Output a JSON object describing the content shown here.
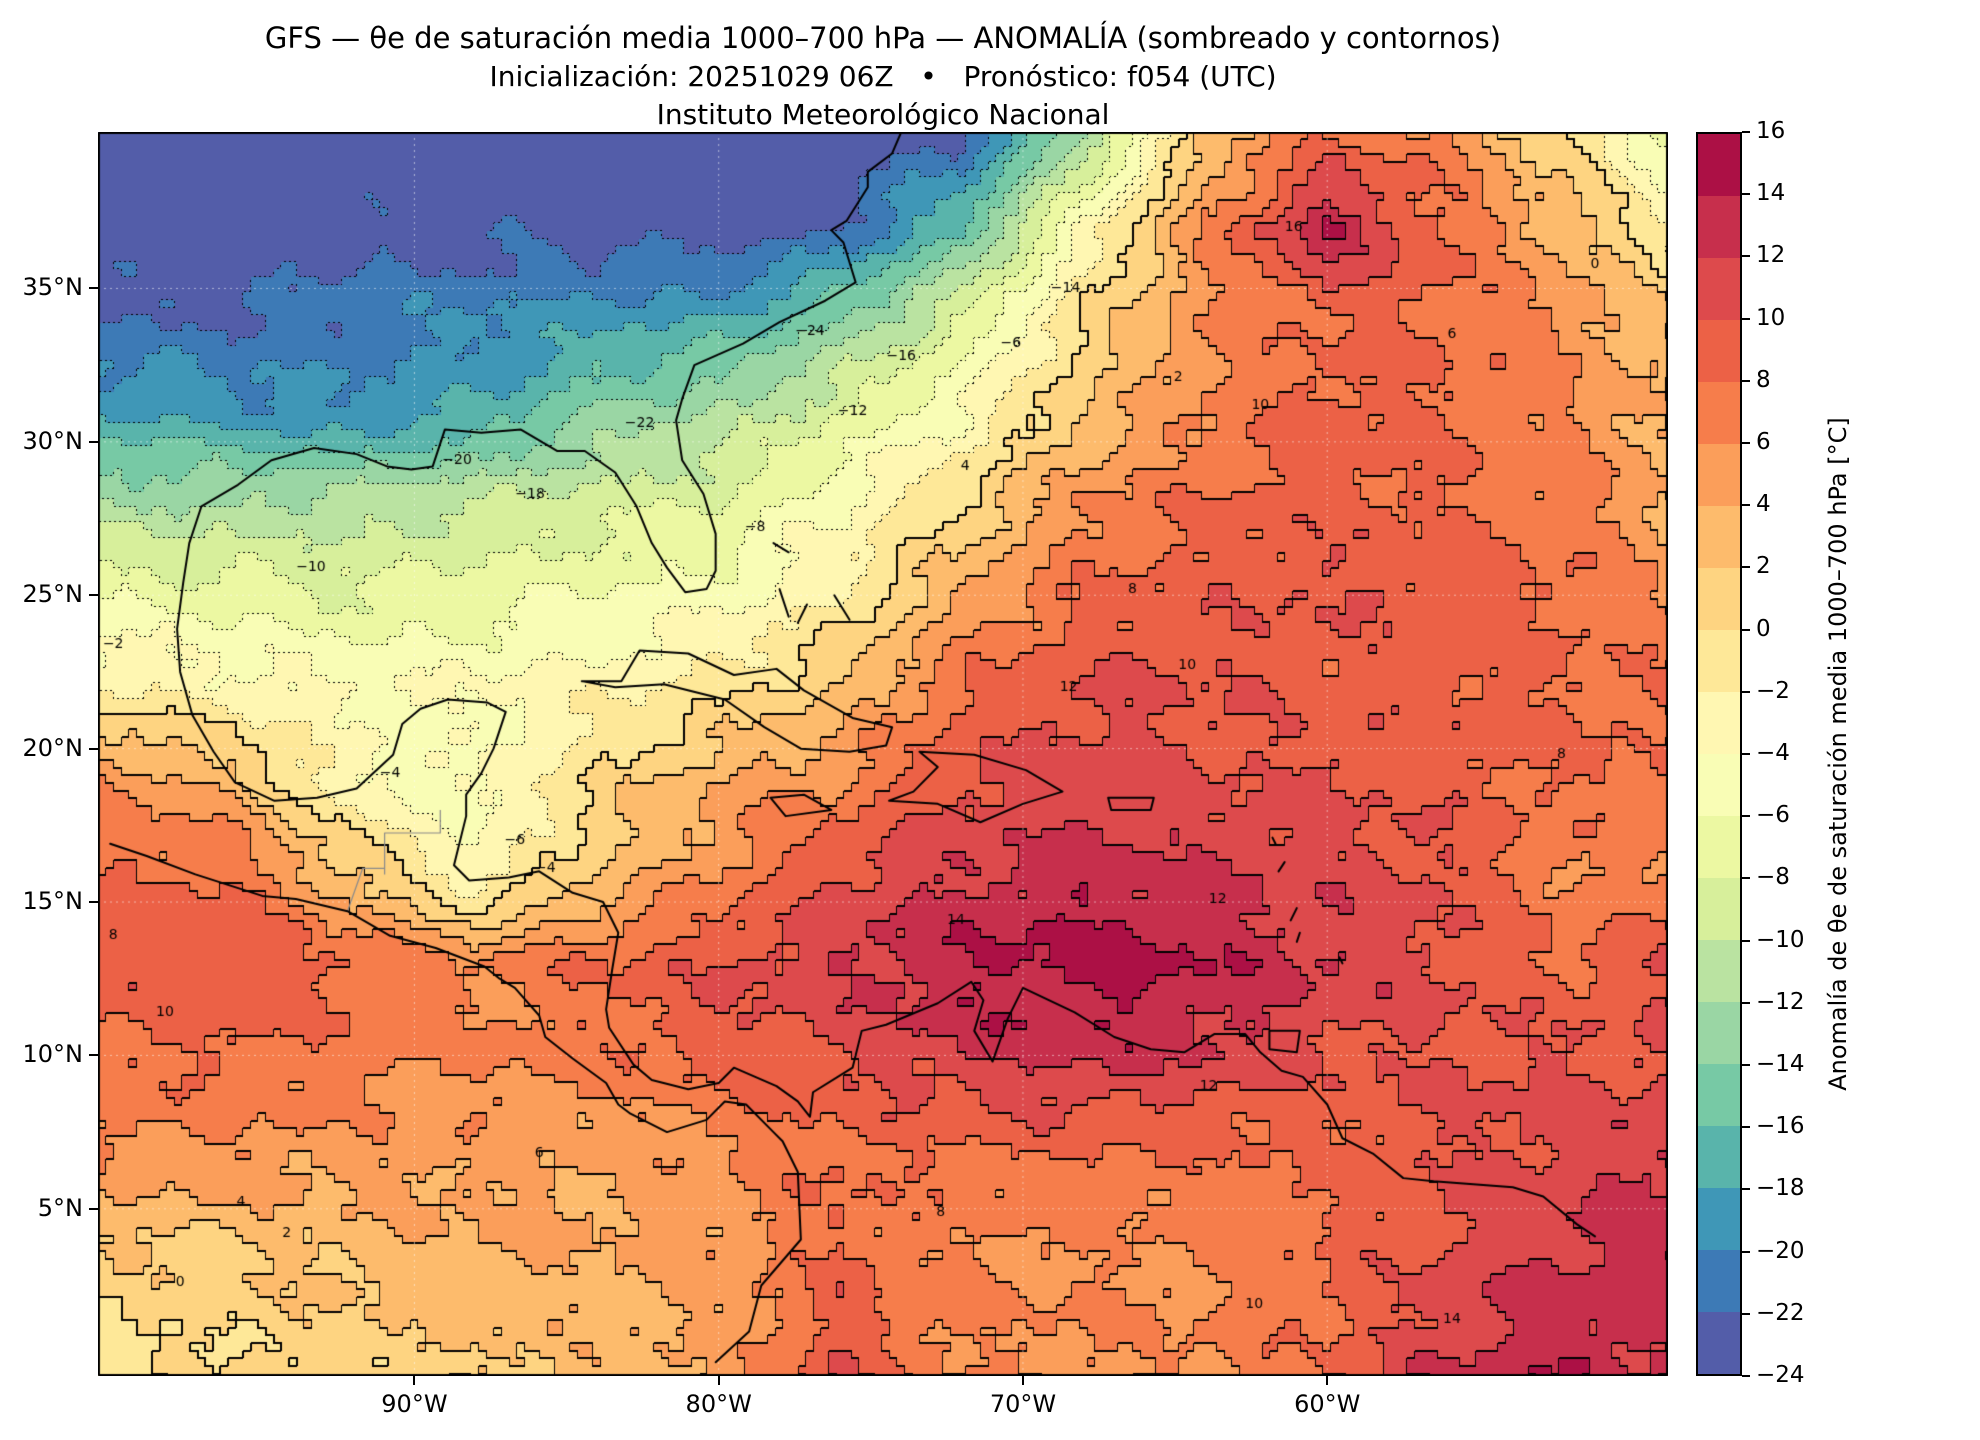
{
  "title": {
    "line1": "GFS — θe de saturación media 1000–700 hPa — ANOMALÍA (sombreado y contornos)",
    "line2": "Inicialización: 20251029 06Z   •   Pronóstico: f054 (UTC)",
    "line3": "Instituto Meteorológico Nacional"
  },
  "axes": {
    "x_ticks": [
      {
        "label": "90°W",
        "lon": -90
      },
      {
        "label": "80°W",
        "lon": -80
      },
      {
        "label": "70°W",
        "lon": -70
      },
      {
        "label": "60°W",
        "lon": -60
      }
    ],
    "y_ticks": [
      {
        "label": "35°N",
        "lat": 35
      },
      {
        "label": "30°N",
        "lat": 30
      },
      {
        "label": "25°N",
        "lat": 25
      },
      {
        "label": "20°N",
        "lat": 20
      },
      {
        "label": "15°N",
        "lat": 15
      },
      {
        "label": "10°N",
        "lat": 10
      },
      {
        "label": "5°N",
        "lat": 5
      }
    ]
  },
  "colorbar": {
    "label": "Anomalía de θe de saturación media 1000–700 hPa [°C]",
    "min": -24,
    "max": 16,
    "step": 2,
    "tick_labels": [
      "16",
      "14",
      "12",
      "10",
      "8",
      "6",
      "4",
      "2",
      "0",
      "−2",
      "−4",
      "−6",
      "−8",
      "−10",
      "−12",
      "−14",
      "−16",
      "−18",
      "−20",
      "−22",
      "−24"
    ],
    "colors": [
      "#535DA9",
      "#3D7AB6",
      "#3F97B7",
      "#59B4AB",
      "#77C9A5",
      "#9AD6A4",
      "#BAE3A1",
      "#D7EF9B",
      "#ECF8A2",
      "#F9FDB5",
      "#FFF7B2",
      "#FEE898",
      "#FED481",
      "#FDBB6C",
      "#FB9E5A",
      "#F67D4B",
      "#EC6146",
      "#DD4A4C",
      "#C72F4C",
      "#AC1045"
    ]
  },
  "chart_data": {
    "type": "heatmap",
    "subtype": "filled_contours_with_lines",
    "title": "GFS — θe de saturación media 1000–700 hPa — ANOMALÍA (sombreado y contornos)",
    "units": "°C",
    "colormap": "Spectral_r",
    "value_range": [
      -24,
      16
    ],
    "contour_interval": 2,
    "negative_contour_style": "dotted",
    "positive_contour_style": "solid",
    "grid_on": true,
    "legend_position": "right-colorbar",
    "lon_range": [
      -100.4,
      -48.8
    ],
    "lat_range": [
      -0.45,
      40.1
    ],
    "grid_lons": [
      -100,
      -96,
      -92,
      -88,
      -84,
      -80,
      -76,
      -72,
      -68,
      -64,
      -60,
      -56,
      -52,
      -49
    ],
    "grid_lats": [
      40,
      37,
      34,
      31,
      28,
      25,
      22,
      19,
      16,
      13,
      10,
      7,
      4,
      0
    ],
    "anomaly_grid_degC": [
      [
        -24,
        -24,
        -24,
        -24,
        -24,
        -24,
        -24,
        -22,
        -12,
        2,
        8,
        6,
        0,
        -6
      ],
      [
        -24,
        -24,
        -23,
        -23,
        -23,
        -24,
        -22,
        -16,
        -4,
        6,
        14,
        8,
        3,
        -2
      ],
      [
        -22,
        -22,
        -21,
        -20,
        -19,
        -18,
        -14,
        -8,
        0,
        6,
        8,
        8,
        6,
        2
      ],
      [
        -18,
        -19,
        -20,
        -18,
        -14,
        -12,
        -8,
        -4,
        2,
        6,
        9,
        8,
        6,
        4
      ],
      [
        -12,
        -12,
        -11,
        -10,
        -9,
        -8,
        -4,
        0,
        6,
        8,
        9,
        8,
        7,
        4
      ],
      [
        -6,
        -7,
        -8,
        -7,
        -6,
        -5,
        -2,
        4,
        8,
        9,
        10,
        9,
        8,
        6
      ],
      [
        -2,
        -3,
        -4,
        -4,
        -3,
        -1,
        2,
        8,
        10,
        10,
        9,
        9,
        8,
        8
      ],
      [
        6,
        3,
        -4,
        -5,
        0,
        4,
        6,
        10,
        11,
        10,
        10,
        9,
        8,
        8
      ],
      [
        8,
        8,
        2,
        -4,
        2,
        6,
        10,
        12,
        13,
        12,
        11,
        10,
        6,
        6
      ],
      [
        9,
        10,
        8,
        6,
        8,
        10,
        12,
        14,
        15,
        14,
        12,
        10,
        8,
        10
      ],
      [
        8,
        8,
        7,
        6,
        7,
        9,
        10,
        12,
        13,
        12,
        10,
        10,
        10,
        10
      ],
      [
        6,
        6,
        5,
        5,
        4,
        6,
        8,
        8,
        8,
        8,
        8,
        10,
        11,
        12
      ],
      [
        2,
        2,
        3,
        4,
        4,
        5,
        8,
        6,
        6,
        6,
        8,
        10,
        12,
        13
      ],
      [
        -1,
        0,
        1,
        2,
        3,
        4,
        10,
        6,
        6,
        6,
        8,
        12,
        14,
        12
      ]
    ],
    "contour_labels": [
      {
        "t": "−24",
        "lon": -77.0,
        "lat": 33.6
      },
      {
        "t": "−22",
        "lon": -82.6,
        "lat": 30.6
      },
      {
        "t": "−20",
        "lon": -88.6,
        "lat": 29.4
      },
      {
        "t": "−18",
        "lon": -86.2,
        "lat": 28.3
      },
      {
        "t": "−16",
        "lon": -74.0,
        "lat": 32.8
      },
      {
        "t": "−14",
        "lon": -68.6,
        "lat": 35.0
      },
      {
        "t": "−12",
        "lon": -75.6,
        "lat": 31.0
      },
      {
        "t": "−10",
        "lon": -93.4,
        "lat": 25.9
      },
      {
        "t": "−8",
        "lon": -78.8,
        "lat": 27.2
      },
      {
        "t": "−6",
        "lon": -70.4,
        "lat": 33.2
      },
      {
        "t": "−6",
        "lon": -86.7,
        "lat": 17.0
      },
      {
        "t": "−4",
        "lon": -90.8,
        "lat": 19.2
      },
      {
        "t": "−4",
        "lon": -85.7,
        "lat": 16.1
      },
      {
        "t": "−2",
        "lon": -99.9,
        "lat": 23.4
      },
      {
        "t": "0",
        "lon": -97.7,
        "lat": 2.6
      },
      {
        "t": "0",
        "lon": -51.2,
        "lat": 35.8
      },
      {
        "t": "2",
        "lon": -64.9,
        "lat": 32.1
      },
      {
        "t": "2",
        "lon": -94.2,
        "lat": 4.2
      },
      {
        "t": "4",
        "lon": -71.9,
        "lat": 29.2
      },
      {
        "t": "4",
        "lon": -95.7,
        "lat": 5.2
      },
      {
        "t": "6",
        "lon": -55.9,
        "lat": 33.5
      },
      {
        "t": "6",
        "lon": -85.9,
        "lat": 6.8
      },
      {
        "t": "8",
        "lon": -66.4,
        "lat": 25.2
      },
      {
        "t": "8",
        "lon": -99.9,
        "lat": 13.9
      },
      {
        "t": "8",
        "lon": -72.7,
        "lat": 4.9
      },
      {
        "t": "8",
        "lon": -52.3,
        "lat": 19.8
      },
      {
        "t": "10",
        "lon": -62.2,
        "lat": 31.2
      },
      {
        "t": "10",
        "lon": -64.6,
        "lat": 22.7
      },
      {
        "t": "10",
        "lon": -98.2,
        "lat": 11.4
      },
      {
        "t": "10",
        "lon": -62.4,
        "lat": 1.9
      },
      {
        "t": "12",
        "lon": -68.5,
        "lat": 22.0
      },
      {
        "t": "12",
        "lon": -63.6,
        "lat": 15.1
      },
      {
        "t": "12",
        "lon": -63.9,
        "lat": 9.0
      },
      {
        "t": "14",
        "lon": -72.2,
        "lat": 14.4
      },
      {
        "t": "14",
        "lon": -55.9,
        "lat": 1.4
      },
      {
        "t": "16",
        "lon": -61.1,
        "lat": 37.0
      }
    ]
  },
  "overlays": {
    "coastlines": [
      [
        [
          -74.0,
          40.1
        ],
        [
          -74.3,
          39.4
        ],
        [
          -75.1,
          38.8
        ],
        [
          -75.1,
          38.3
        ],
        [
          -75.8,
          37.2
        ],
        [
          -76.3,
          36.9
        ],
        [
          -75.9,
          36.5
        ],
        [
          -75.5,
          35.2
        ],
        [
          -76.5,
          34.6
        ],
        [
          -78.0,
          33.9
        ],
        [
          -79.2,
          33.2
        ],
        [
          -80.8,
          32.5
        ],
        [
          -81.2,
          31.4
        ],
        [
          -81.4,
          30.7
        ],
        [
          -81.2,
          29.4
        ],
        [
          -80.5,
          28.3
        ],
        [
          -80.1,
          27.0
        ],
        [
          -80.1,
          25.8
        ],
        [
          -80.4,
          25.2
        ],
        [
          -81.1,
          25.1
        ],
        [
          -81.7,
          25.9
        ],
        [
          -82.2,
          26.7
        ],
        [
          -82.7,
          27.9
        ],
        [
          -83.4,
          29.0
        ],
        [
          -84.4,
          29.7
        ],
        [
          -85.3,
          29.7
        ],
        [
          -86.5,
          30.4
        ],
        [
          -87.8,
          30.3
        ],
        [
          -89.0,
          30.4
        ],
        [
          -89.4,
          29.2
        ],
        [
          -90.1,
          29.1
        ],
        [
          -90.9,
          29.2
        ],
        [
          -91.9,
          29.6
        ],
        [
          -93.3,
          29.8
        ],
        [
          -94.7,
          29.4
        ],
        [
          -95.8,
          28.6
        ],
        [
          -97.0,
          27.9
        ],
        [
          -97.4,
          26.7
        ],
        [
          -97.6,
          25.4
        ],
        [
          -97.8,
          23.9
        ],
        [
          -97.7,
          22.5
        ],
        [
          -97.3,
          21.1
        ],
        [
          -96.6,
          19.9
        ],
        [
          -95.9,
          18.9
        ],
        [
          -94.6,
          18.3
        ],
        [
          -93.2,
          18.4
        ],
        [
          -91.9,
          18.7
        ],
        [
          -90.7,
          19.8
        ],
        [
          -90.4,
          20.8
        ],
        [
          -89.8,
          21.3
        ],
        [
          -88.9,
          21.6
        ],
        [
          -87.6,
          21.5
        ],
        [
          -87.0,
          21.2
        ],
        [
          -87.4,
          20.0
        ],
        [
          -87.8,
          19.2
        ],
        [
          -88.3,
          18.5
        ],
        [
          -88.3,
          17.8
        ],
        [
          -88.7,
          16.2
        ],
        [
          -88.2,
          15.7
        ],
        [
          -86.9,
          15.8
        ],
        [
          -85.9,
          16.0
        ],
        [
          -84.8,
          15.3
        ],
        [
          -83.8,
          15.0
        ],
        [
          -83.3,
          14.0
        ],
        [
          -83.5,
          12.8
        ],
        [
          -83.7,
          11.5
        ],
        [
          -83.6,
          10.9
        ],
        [
          -82.8,
          9.7
        ],
        [
          -82.2,
          9.2
        ],
        [
          -81.0,
          8.9
        ],
        [
          -80.0,
          9.1
        ],
        [
          -79.5,
          9.6
        ],
        [
          -78.8,
          9.3
        ],
        [
          -78.1,
          9.0
        ],
        [
          -77.4,
          8.5
        ],
        [
          -77.0,
          8.0
        ],
        [
          -76.9,
          8.8
        ],
        [
          -75.6,
          9.6
        ],
        [
          -75.3,
          10.8
        ],
        [
          -74.5,
          11.0
        ],
        [
          -72.8,
          11.7
        ],
        [
          -71.7,
          12.4
        ],
        [
          -71.3,
          11.8
        ],
        [
          -71.6,
          10.8
        ],
        [
          -71.0,
          9.8
        ],
        [
          -70.5,
          11.2
        ],
        [
          -70.0,
          12.2
        ],
        [
          -68.3,
          11.4
        ],
        [
          -67.0,
          10.6
        ],
        [
          -65.8,
          10.2
        ],
        [
          -64.7,
          10.1
        ],
        [
          -63.7,
          10.7
        ],
        [
          -62.7,
          10.7
        ],
        [
          -62.2,
          10.1
        ],
        [
          -61.5,
          9.5
        ],
        [
          -60.8,
          9.3
        ],
        [
          -60.0,
          8.4
        ],
        [
          -59.5,
          7.3
        ],
        [
          -58.5,
          6.8
        ],
        [
          -57.5,
          6.0
        ],
        [
          -56.5,
          5.9
        ],
        [
          -55.2,
          5.8
        ],
        [
          -53.9,
          5.7
        ],
        [
          -52.9,
          5.4
        ],
        [
          -51.8,
          4.5
        ],
        [
          -51.2,
          4.1
        ]
      ],
      [
        [
          -100.0,
          16.9
        ],
        [
          -98.8,
          16.5
        ],
        [
          -97.2,
          15.9
        ],
        [
          -95.0,
          15.2
        ],
        [
          -93.9,
          15.1
        ],
        [
          -92.2,
          14.7
        ],
        [
          -90.8,
          13.9
        ],
        [
          -89.3,
          13.5
        ],
        [
          -87.7,
          12.9
        ],
        [
          -87.2,
          12.5
        ],
        [
          -86.7,
          12.2
        ],
        [
          -85.9,
          11.3
        ],
        [
          -85.7,
          10.6
        ],
        [
          -84.8,
          9.9
        ],
        [
          -83.7,
          9.1
        ],
        [
          -83.3,
          8.4
        ],
        [
          -82.9,
          8.1
        ],
        [
          -81.7,
          7.5
        ],
        [
          -80.4,
          7.9
        ],
        [
          -79.8,
          8.5
        ],
        [
          -79.1,
          8.4
        ],
        [
          -78.2,
          7.5
        ],
        [
          -77.9,
          7.2
        ],
        [
          -77.4,
          6.2
        ],
        [
          -77.3,
          4.0
        ],
        [
          -78.6,
          2.5
        ],
        [
          -79.0,
          1.0
        ],
        [
          -80.1,
          0.0
        ]
      ],
      [
        [
          -84.5,
          22.2
        ],
        [
          -83.2,
          22.2
        ],
        [
          -82.6,
          23.2
        ],
        [
          -81.0,
          23.1
        ],
        [
          -79.5,
          22.4
        ],
        [
          -78.1,
          22.6
        ],
        [
          -77.2,
          21.9
        ],
        [
          -75.6,
          21.0
        ],
        [
          -74.3,
          20.7
        ],
        [
          -74.5,
          20.1
        ],
        [
          -75.7,
          19.9
        ],
        [
          -77.3,
          20.0
        ],
        [
          -78.5,
          20.7
        ],
        [
          -79.8,
          21.6
        ],
        [
          -81.8,
          22.1
        ],
        [
          -83.4,
          22.0
        ],
        [
          -84.5,
          22.2
        ]
      ],
      [
        [
          -73.4,
          19.9
        ],
        [
          -71.6,
          19.8
        ],
        [
          -69.9,
          19.3
        ],
        [
          -68.7,
          18.6
        ],
        [
          -70.0,
          18.2
        ],
        [
          -71.4,
          17.6
        ],
        [
          -72.8,
          18.2
        ],
        [
          -74.4,
          18.3
        ],
        [
          -73.6,
          18.6
        ],
        [
          -72.8,
          19.4
        ],
        [
          -73.4,
          19.9
        ]
      ],
      [
        [
          -78.3,
          18.4
        ],
        [
          -77.2,
          18.5
        ],
        [
          -76.3,
          18.0
        ],
        [
          -77.8,
          17.8
        ],
        [
          -78.3,
          18.4
        ]
      ],
      [
        [
          -67.2,
          18.4
        ],
        [
          -65.7,
          18.4
        ],
        [
          -65.8,
          18.0
        ],
        [
          -67.1,
          18.0
        ],
        [
          -67.2,
          18.4
        ]
      ],
      [
        [
          -61.9,
          10.8
        ],
        [
          -60.9,
          10.8
        ],
        [
          -61.0,
          10.1
        ],
        [
          -61.9,
          10.2
        ],
        [
          -61.9,
          10.8
        ]
      ],
      [
        [
          -78.2,
          26.7
        ],
        [
          -77.7,
          26.4
        ]
      ],
      [
        [
          -78.0,
          25.2
        ],
        [
          -77.7,
          24.3
        ]
      ],
      [
        [
          -77.4,
          24.1
        ],
        [
          -77.1,
          24.7
        ]
      ],
      [
        [
          -75.7,
          24.2
        ],
        [
          -76.2,
          25.0
        ]
      ],
      [
        [
          -61.8,
          17.1
        ],
        [
          -61.7,
          16.9
        ]
      ],
      [
        [
          -61.4,
          16.3
        ],
        [
          -61.6,
          16.0
        ]
      ],
      [
        [
          -61.0,
          14.8
        ],
        [
          -61.2,
          14.4
        ]
      ],
      [
        [
          -60.9,
          14.0
        ],
        [
          -61.0,
          13.7
        ]
      ],
      [
        [
          -59.6,
          13.2
        ],
        [
          -59.5,
          13.0
        ]
      ]
    ],
    "borders": [
      [
        [
          -90.98,
          15.9
        ],
        [
          -90.98,
          17.25
        ],
        [
          -89.15,
          17.25
        ],
        [
          -89.15,
          18.0
        ]
      ],
      [
        [
          -92.2,
          14.7
        ],
        [
          -91.7,
          16.1
        ],
        [
          -90.98,
          16.1
        ]
      ]
    ]
  }
}
